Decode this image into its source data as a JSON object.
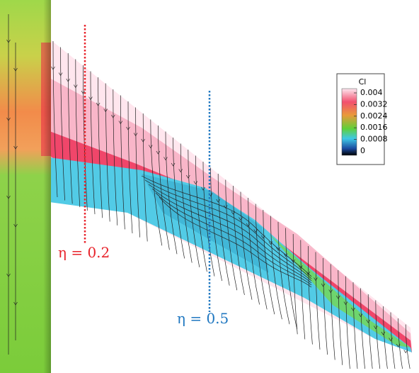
{
  "colorbar": {
    "title": "Cl",
    "range": [
      0,
      0.004
    ],
    "ticks": [
      0.004,
      0.0032,
      0.0024,
      0.0016,
      0.0008,
      0
    ]
  },
  "annotations": [
    {
      "text": "η = 0.2",
      "color": "#e8232b"
    },
    {
      "text": "η = 0.5",
      "color": "#1f77c0"
    }
  ]
}
